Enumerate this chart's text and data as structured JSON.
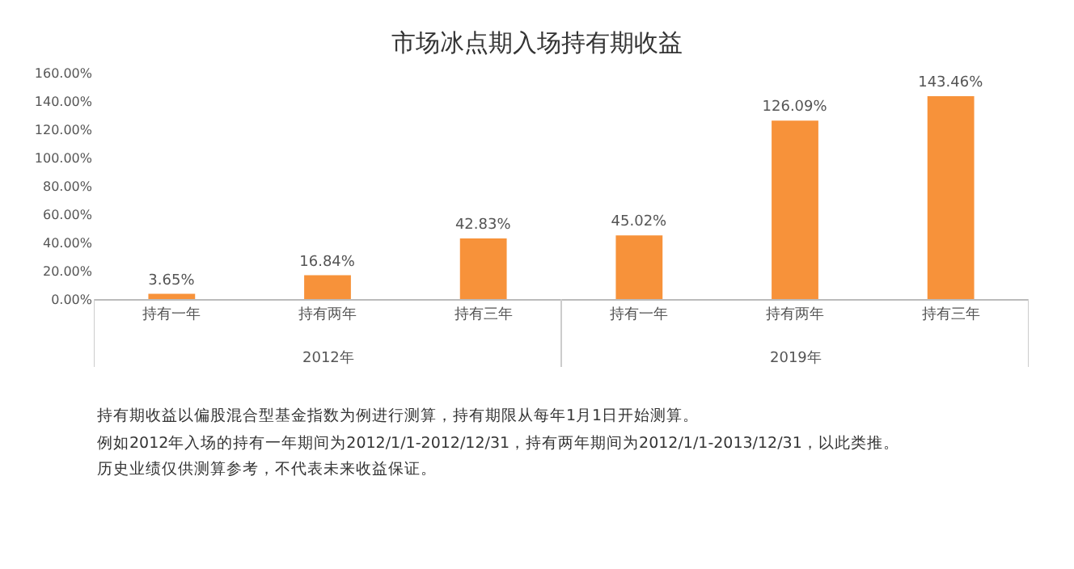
{
  "chart_data": {
    "type": "bar",
    "title": "市场冰点期入场持有期收益",
    "categories": [
      "持有一年",
      "持有两年",
      "持有三年",
      "持有一年",
      "持有两年",
      "持有三年"
    ],
    "values": [
      3.65,
      16.84,
      42.83,
      45.02,
      126.09,
      143.46
    ],
    "value_labels": [
      "3.65%",
      "16.84%",
      "42.83%",
      "45.02%",
      "126.09%",
      "143.46%"
    ],
    "color": "#f7923a",
    "ylim": [
      0,
      160
    ],
    "yticks": [
      {
        "value": 0,
        "label": "0.00%"
      },
      {
        "value": 20,
        "label": "20.00%"
      },
      {
        "value": 40,
        "label": "40.00%"
      },
      {
        "value": 60,
        "label": "60.00%"
      },
      {
        "value": 80,
        "label": "80.00%"
      },
      {
        "value": 100,
        "label": "100.00%"
      },
      {
        "value": 120,
        "label": "120.00%"
      },
      {
        "value": 140,
        "label": "140.00%"
      },
      {
        "value": 160,
        "label": "160.00%"
      }
    ],
    "annotations": [
      "2012年",
      "2019年",
      "持有期收益以偏股混合型基金指数为例进行测算，持有期限从每年1月1日开始测算。",
      "例如2012年入场的持有一年期间为2012/1/1-2012/12/31，持有两年期间为2012/1/1-2013/12/31，以此类推。",
      "历史业绩仅供测算参考，不代表未来收益保证。"
    ]
  }
}
